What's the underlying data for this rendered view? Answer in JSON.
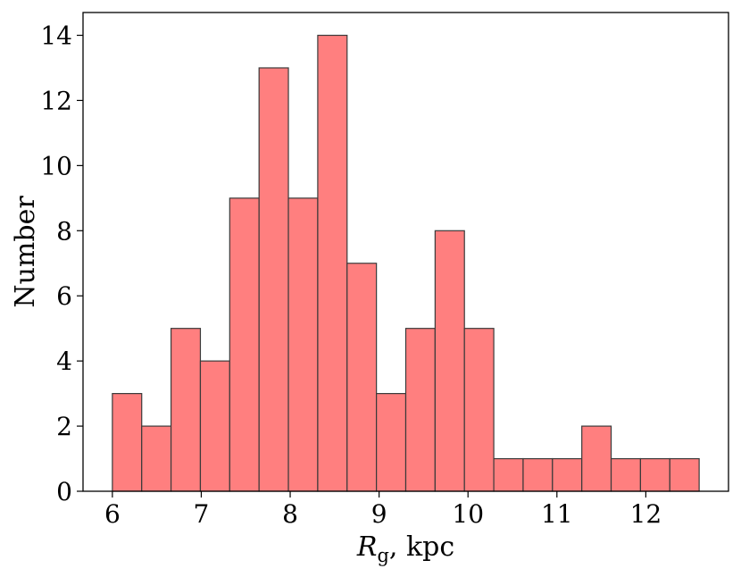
{
  "chart_data": {
    "type": "bar",
    "subtype": "histogram",
    "bin_edges": [
      6.0,
      6.33,
      6.66,
      6.99,
      7.32,
      7.65,
      7.98,
      8.31,
      8.64,
      8.97,
      9.3,
      9.63,
      9.96,
      10.29,
      10.62,
      10.95,
      11.28,
      11.61,
      11.94,
      12.27,
      12.6
    ],
    "values": [
      3,
      2,
      5,
      4,
      9,
      13,
      9,
      14,
      7,
      3,
      5,
      8,
      5,
      1,
      1,
      1,
      2,
      1,
      1,
      1
    ],
    "title": "",
    "xlabel": {
      "symbol": "R",
      "subscript": "g",
      "suffix": ", kpc"
    },
    "ylabel": "Number",
    "xlim": [
      5.67,
      12.93
    ],
    "ylim": [
      0,
      14.7
    ],
    "xticks": [
      6,
      7,
      8,
      9,
      10,
      11,
      12
    ],
    "yticks": [
      0,
      2,
      4,
      6,
      8,
      10,
      12,
      14
    ],
    "grid": false,
    "bar_color": "#ff7f7f",
    "edge_color": "#3a3a3a"
  }
}
